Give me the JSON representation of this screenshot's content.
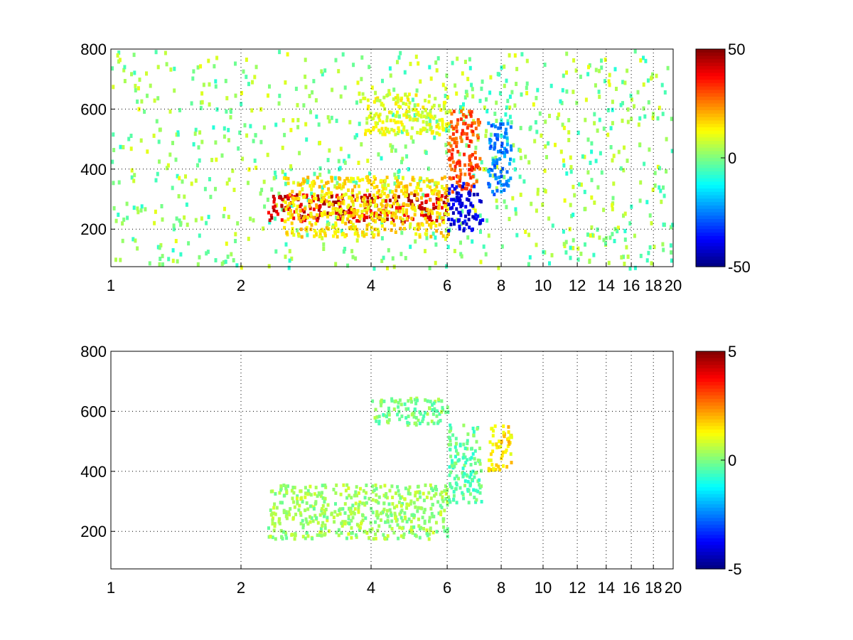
{
  "chart_data": [
    {
      "type": "heatmap",
      "title": "",
      "xlabel": "",
      "ylabel": "",
      "x_scale": "log",
      "xlim": [
        1,
        20
      ],
      "ylim": [
        75,
        800
      ],
      "x_ticks": [
        1,
        2,
        4,
        6,
        8,
        10,
        12,
        14,
        16,
        18,
        20
      ],
      "x_tick_labels": [
        "1",
        "2",
        "4",
        "6",
        "8",
        "10",
        "12",
        "14",
        "16",
        "18",
        "20"
      ],
      "y_ticks": [
        200,
        400,
        600,
        800
      ],
      "y_tick_labels": [
        "200",
        "400",
        "600",
        "800"
      ],
      "grid": true,
      "colormap": "jet",
      "colorbar": {
        "min": -50,
        "max": 50,
        "tick_labels": [
          "50",
          "0",
          "-50"
        ],
        "position": "right"
      },
      "regions": [
        {
          "desc": "main ridge",
          "x_from": 2.3,
          "x_to": 6.0,
          "y_from": 230,
          "y_to": 320,
          "value": 42
        },
        {
          "desc": "ridge halo",
          "x_from": 2.5,
          "x_to": 6.0,
          "y_from": 180,
          "y_to": 380,
          "value": 15
        },
        {
          "desc": "upper branch",
          "x_from": 3.8,
          "x_to": 6.0,
          "y_from": 520,
          "y_to": 660,
          "value": 10
        },
        {
          "desc": "hot column",
          "x_from": 6.0,
          "x_to": 7.1,
          "y_from": 330,
          "y_to": 600,
          "value": 30
        },
        {
          "desc": "negative patch",
          "x_from": 6.0,
          "x_to": 7.2,
          "y_from": 200,
          "y_to": 360,
          "value": -40
        },
        {
          "desc": "cool patch",
          "x_from": 7.4,
          "x_to": 8.4,
          "y_from": 320,
          "y_to": 560,
          "value": -25
        }
      ]
    },
    {
      "type": "heatmap",
      "title": "",
      "xlabel": "",
      "ylabel": "",
      "x_scale": "log",
      "xlim": [
        1,
        20
      ],
      "ylim": [
        75,
        800
      ],
      "x_ticks": [
        1,
        2,
        4,
        6,
        8,
        10,
        12,
        14,
        16,
        18,
        20
      ],
      "x_tick_labels": [
        "1",
        "2",
        "4",
        "6",
        "8",
        "10",
        "12",
        "14",
        "16",
        "18",
        "20"
      ],
      "y_ticks": [
        200,
        400,
        600,
        800
      ],
      "y_tick_labels": [
        "200",
        "400",
        "600",
        "800"
      ],
      "grid": true,
      "colormap": "jet",
      "colorbar": {
        "min": -5,
        "max": 5,
        "tick_labels": [
          "5",
          "0",
          "-5"
        ],
        "position": "right"
      },
      "regions": [
        {
          "desc": "main ridge",
          "x_from": 2.3,
          "x_to": 6.0,
          "y_from": 180,
          "y_to": 360,
          "value": 0.3
        },
        {
          "desc": "upper branch",
          "x_from": 4.0,
          "x_to": 6.0,
          "y_from": 560,
          "y_to": 650,
          "value": 0
        },
        {
          "desc": "column",
          "x_from": 6.0,
          "x_to": 7.2,
          "y_from": 300,
          "y_to": 560,
          "value": -0.3
        },
        {
          "desc": "right patch",
          "x_from": 7.4,
          "x_to": 8.4,
          "y_from": 400,
          "y_to": 560,
          "value": 1.5
        }
      ]
    }
  ]
}
